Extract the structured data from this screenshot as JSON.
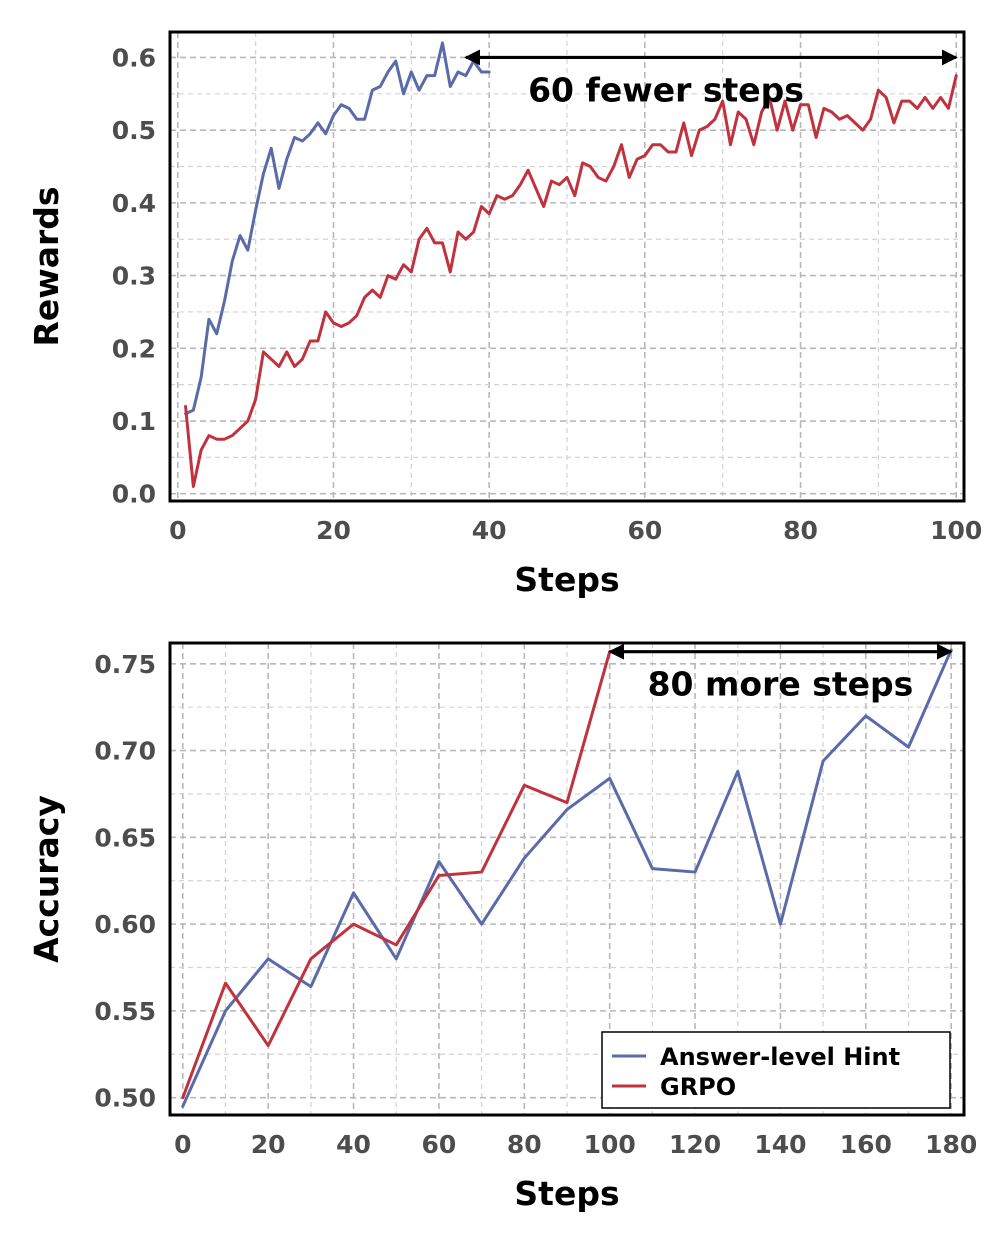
{
  "colors": {
    "hint": "#5b6aa8",
    "grpo": "#c0323d",
    "grid": "#b8b8b8",
    "tick": "#4d4d4d"
  },
  "chart_data": [
    {
      "type": "line",
      "title": "",
      "xlabel": "Steps",
      "ylabel": "Rewards",
      "xlim": [
        -1,
        101
      ],
      "ylim": [
        -0.01,
        0.635
      ],
      "xticks": [
        0,
        20,
        40,
        60,
        80,
        100
      ],
      "yticks": [
        0.0,
        0.1,
        0.2,
        0.3,
        0.4,
        0.5,
        0.6
      ],
      "yticks_minor": [
        0.05,
        0.15,
        0.25,
        0.35,
        0.45,
        0.55
      ],
      "xticks_minor": [
        10,
        30,
        50,
        70,
        90
      ],
      "tick_decimals_y": 1,
      "grid": true,
      "legend": "none",
      "annotation": {
        "text": "60 fewer steps",
        "from_x": 37,
        "to_x": 100,
        "y": 0.6
      },
      "series": [
        {
          "key": "hint",
          "x": [
            1,
            2,
            3,
            4,
            5,
            6,
            7,
            8,
            9,
            10,
            11,
            12,
            13,
            14,
            15,
            16,
            17,
            18,
            19,
            20,
            21,
            22,
            23,
            24,
            25,
            26,
            27,
            28,
            29,
            30,
            31,
            32,
            33,
            34,
            35,
            36,
            37,
            38,
            39,
            40
          ],
          "values": [
            0.11,
            0.115,
            0.16,
            0.24,
            0.22,
            0.265,
            0.32,
            0.355,
            0.335,
            0.39,
            0.44,
            0.475,
            0.42,
            0.46,
            0.49,
            0.485,
            0.495,
            0.51,
            0.495,
            0.52,
            0.535,
            0.53,
            0.515,
            0.515,
            0.555,
            0.56,
            0.58,
            0.595,
            0.55,
            0.58,
            0.555,
            0.575,
            0.575,
            0.62,
            0.56,
            0.58,
            0.575,
            0.595,
            0.58,
            0.58
          ]
        },
        {
          "key": "grpo",
          "x": [
            1,
            2,
            3,
            4,
            5,
            6,
            7,
            8,
            9,
            10,
            11,
            12,
            13,
            14,
            15,
            16,
            17,
            18,
            19,
            20,
            21,
            22,
            23,
            24,
            25,
            26,
            27,
            28,
            29,
            30,
            31,
            32,
            33,
            34,
            35,
            36,
            37,
            38,
            39,
            40,
            41,
            42,
            43,
            44,
            45,
            46,
            47,
            48,
            49,
            50,
            51,
            52,
            53,
            54,
            55,
            56,
            57,
            58,
            59,
            60,
            61,
            62,
            63,
            64,
            65,
            66,
            67,
            68,
            69,
            70,
            71,
            72,
            73,
            74,
            75,
            76,
            77,
            78,
            79,
            80,
            81,
            82,
            83,
            84,
            85,
            86,
            87,
            88,
            89,
            90,
            91,
            92,
            93,
            94,
            95,
            96,
            97,
            98,
            99,
            100
          ],
          "values": [
            0.12,
            0.01,
            0.06,
            0.08,
            0.075,
            0.075,
            0.08,
            0.09,
            0.1,
            0.13,
            0.195,
            0.185,
            0.175,
            0.195,
            0.175,
            0.185,
            0.21,
            0.21,
            0.25,
            0.235,
            0.23,
            0.235,
            0.245,
            0.27,
            0.28,
            0.27,
            0.3,
            0.295,
            0.315,
            0.305,
            0.35,
            0.365,
            0.345,
            0.345,
            0.305,
            0.36,
            0.35,
            0.36,
            0.395,
            0.385,
            0.41,
            0.405,
            0.41,
            0.425,
            0.445,
            0.42,
            0.395,
            0.43,
            0.425,
            0.435,
            0.41,
            0.455,
            0.45,
            0.435,
            0.43,
            0.45,
            0.48,
            0.435,
            0.46,
            0.465,
            0.48,
            0.48,
            0.47,
            0.47,
            0.51,
            0.465,
            0.5,
            0.505,
            0.515,
            0.54,
            0.48,
            0.525,
            0.515,
            0.48,
            0.525,
            0.545,
            0.5,
            0.54,
            0.5,
            0.535,
            0.535,
            0.49,
            0.53,
            0.525,
            0.515,
            0.52,
            0.51,
            0.5,
            0.515,
            0.555,
            0.545,
            0.51,
            0.54,
            0.54,
            0.53,
            0.545,
            0.53,
            0.545,
            0.53,
            0.575
          ]
        }
      ]
    },
    {
      "type": "line",
      "title": "",
      "xlabel": "Steps",
      "ylabel": "Accuracy",
      "xlim": [
        -3,
        183
      ],
      "ylim": [
        0.49,
        0.762
      ],
      "xticks": [
        0,
        20,
        40,
        60,
        80,
        100,
        120,
        140,
        160,
        180
      ],
      "yticks": [
        0.5,
        0.55,
        0.6,
        0.65,
        0.7,
        0.75
      ],
      "yticks_minor": [
        0.525,
        0.575,
        0.625,
        0.675,
        0.725
      ],
      "xticks_minor": [
        10,
        30,
        50,
        70,
        90,
        110,
        130,
        150,
        170
      ],
      "tick_decimals_y": 2,
      "grid": true,
      "legend": "lower-right",
      "annotation": {
        "text": "80 more steps",
        "from_x": 100,
        "to_x": 180,
        "y": 0.757
      },
      "series": [
        {
          "key": "hint",
          "name": "Answer-level Hint",
          "x": [
            0,
            10,
            20,
            30,
            40,
            50,
            60,
            70,
            80,
            90,
            100,
            110,
            120,
            130,
            140,
            150,
            160,
            170,
            180
          ],
          "values": [
            0.495,
            0.55,
            0.58,
            0.564,
            0.618,
            0.58,
            0.636,
            0.6,
            0.638,
            0.666,
            0.684,
            0.632,
            0.63,
            0.688,
            0.6,
            0.694,
            0.72,
            0.702,
            0.758
          ]
        },
        {
          "key": "grpo",
          "name": "GRPO",
          "x": [
            0,
            10,
            20,
            30,
            40,
            50,
            60,
            70,
            80,
            90,
            100
          ],
          "values": [
            0.5,
            0.566,
            0.53,
            0.58,
            0.6,
            0.588,
            0.628,
            0.63,
            0.68,
            0.67,
            0.757
          ]
        }
      ]
    }
  ]
}
